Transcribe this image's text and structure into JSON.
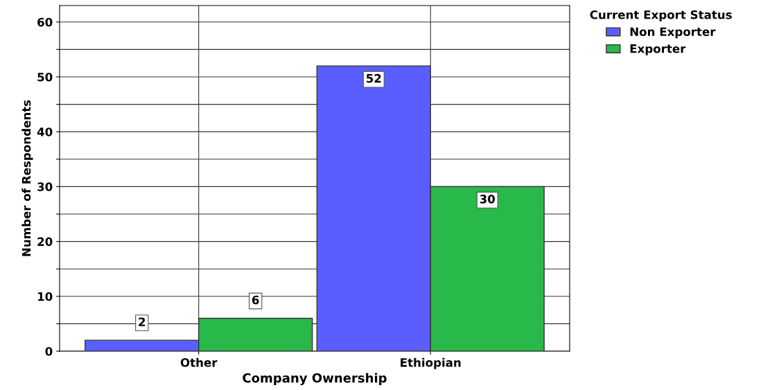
{
  "chart_data": {
    "type": "bar",
    "xlabel": "Company Ownership",
    "ylabel": "Number of Respondents",
    "legend_title": "Current Export Status",
    "categories": [
      "Other",
      "Ethiopian"
    ],
    "series": [
      {
        "name": "Non Exporter",
        "color": "#5a5eff",
        "values": [
          2,
          52
        ]
      },
      {
        "name": "Exporter",
        "color": "#29b94a",
        "values": [
          6,
          30
        ]
      }
    ],
    "ylim": [
      0,
      63
    ],
    "yticks": [
      0,
      {
        "value": 5,
        "label": null
      },
      10,
      {
        "value": 15,
        "label": null
      },
      20,
      {
        "value": 25,
        "label": null
      },
      30,
      {
        "value": 35,
        "label": null
      },
      40,
      {
        "value": 45,
        "label": null
      },
      50,
      {
        "value": 55,
        "label": null
      },
      60
    ],
    "grid": true,
    "legend": "top right",
    "data_labels": true
  }
}
